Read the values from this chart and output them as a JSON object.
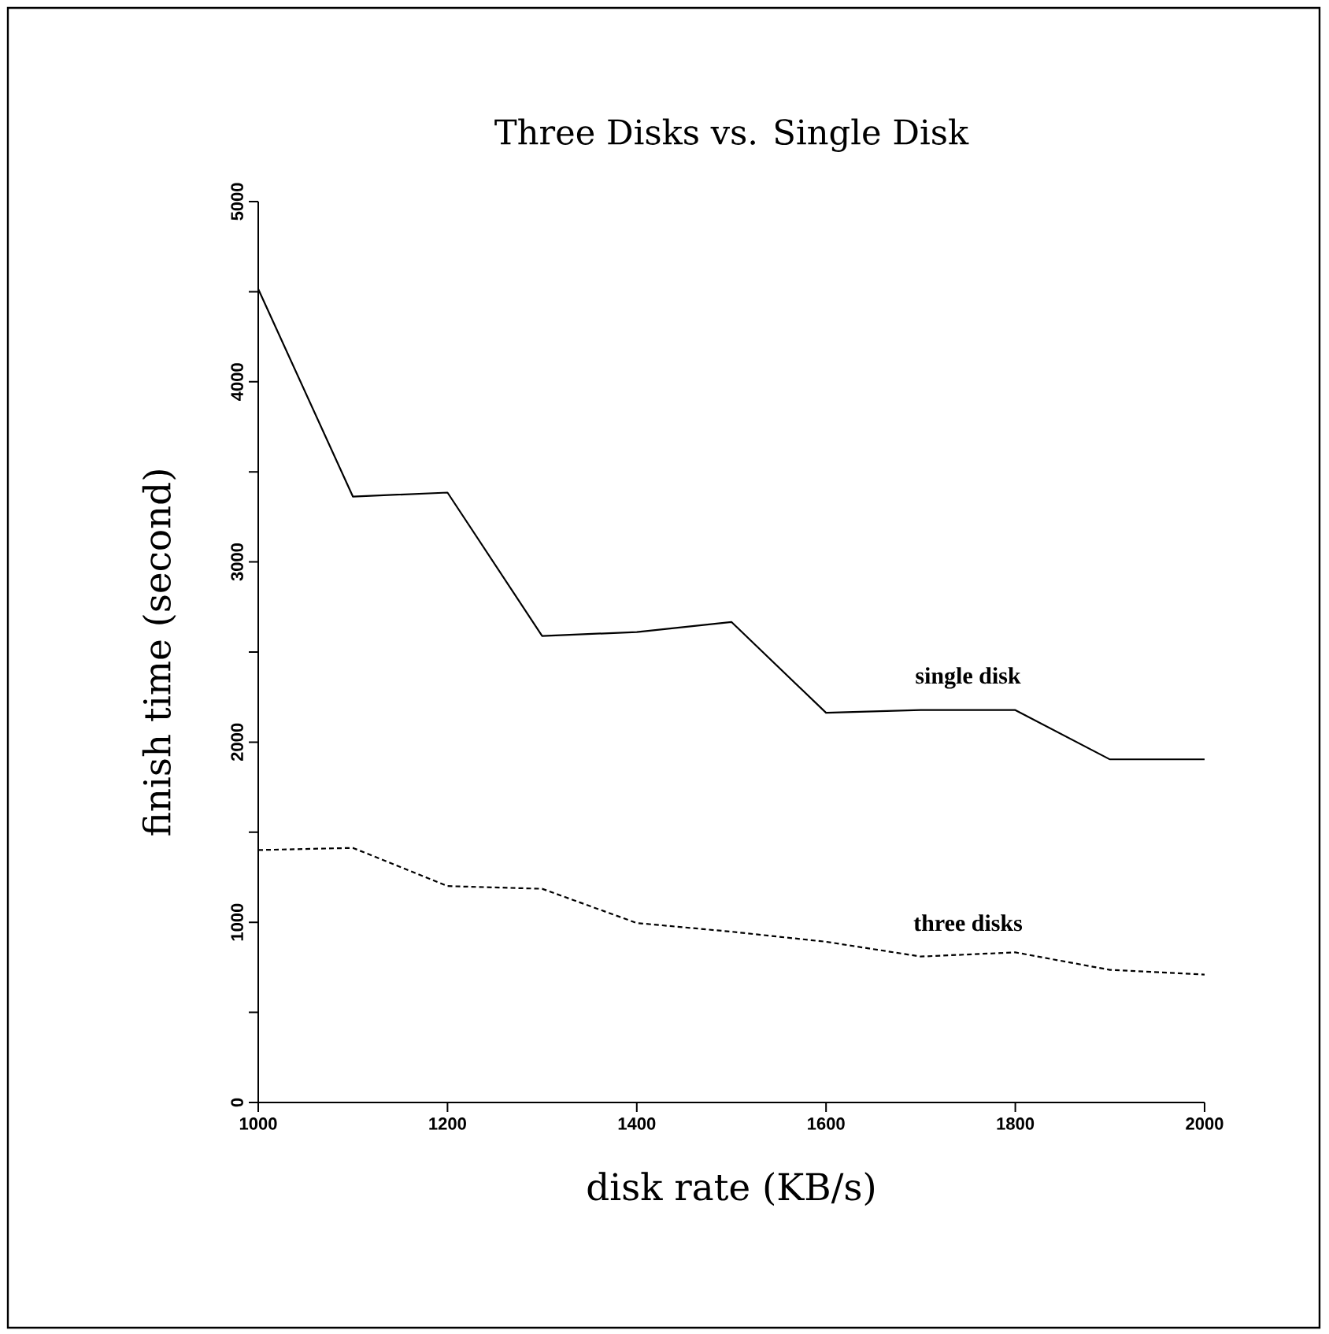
{
  "chart_data": {
    "type": "line",
    "title": "Three Disks vs. Single Disk",
    "xlabel": "disk rate (KB/s)",
    "ylabel": "finish time (second)",
    "x": [
      1000,
      1100,
      1200,
      1300,
      1400,
      1500,
      1600,
      1700,
      1800,
      1900,
      2000
    ],
    "series": [
      {
        "name": "single disk",
        "color": "#000000",
        "line_style": "solid",
        "values": [
          4515,
          3363,
          3385,
          2589,
          2611,
          2667,
          2163,
          2178,
          2178,
          1904,
          1904
        ]
      },
      {
        "name": "three disks",
        "color": "#000000",
        "line_style": "dotted",
        "values": [
          1401,
          1413,
          1201,
          1186,
          996,
          948,
          892,
          810,
          833,
          736,
          710
        ]
      }
    ],
    "xlim": [
      1000,
      2000
    ],
    "ylim": [
      0,
      5000
    ],
    "xticks": [
      1000,
      1200,
      1400,
      1600,
      1800,
      2000
    ],
    "yticks": [
      0,
      {
        "value": 500,
        "label": null
      },
      1000,
      {
        "value": 1500,
        "label": null
      },
      2000,
      {
        "value": 2500,
        "label": null
      },
      3000,
      {
        "value": 3500,
        "label": null
      },
      4000,
      {
        "value": 4500,
        "label": null
      },
      5000
    ],
    "grid": false,
    "legend": false,
    "marker": "none"
  }
}
